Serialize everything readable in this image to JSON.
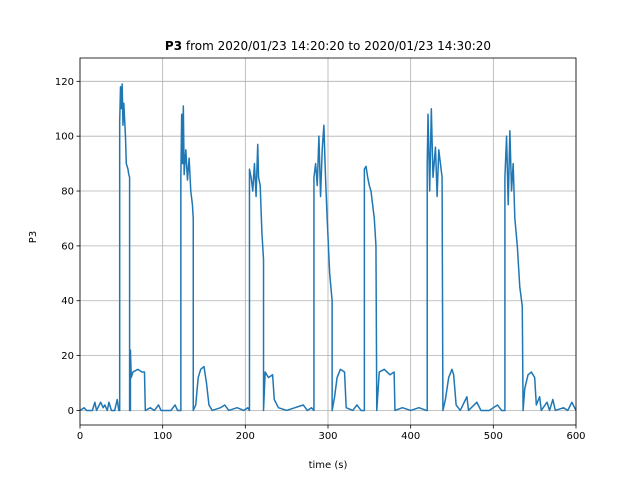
{
  "chart_data": {
    "type": "line",
    "title_bold": "P3",
    "title": "from 2020/01/23 14:20:20 to 2020/01/23 14:30:20",
    "xlabel": "time (s)",
    "ylabel": "P3",
    "xlim": [
      0,
      600
    ],
    "ylim": [
      -5.3,
      128.5
    ],
    "xticks": [
      0,
      100,
      200,
      300,
      400,
      500,
      600
    ],
    "yticks": [
      0,
      20,
      40,
      60,
      80,
      100,
      120
    ],
    "grid": true,
    "x": [
      0,
      5,
      8,
      15,
      18,
      20,
      25,
      28,
      30,
      33,
      35,
      38,
      42,
      45,
      47,
      48,
      48,
      49,
      50,
      51,
      52,
      53,
      55,
      56,
      58,
      59,
      60,
      60,
      61,
      61,
      62,
      64,
      70,
      75,
      78,
      79,
      85,
      90,
      95,
      98,
      110,
      115,
      118,
      122,
      122,
      123,
      124,
      125,
      126,
      128,
      130,
      132,
      134,
      136,
      137,
      137,
      140,
      143,
      146,
      150,
      153,
      156,
      160,
      170,
      175,
      180,
      190,
      198,
      203,
      205,
      205,
      207,
      209,
      211,
      213,
      215,
      216,
      218,
      220,
      222,
      222,
      224,
      228,
      233,
      235,
      240,
      250,
      260,
      270,
      275,
      280,
      283,
      283,
      285,
      287,
      289,
      291,
      293,
      295,
      297,
      299,
      302,
      305,
      305,
      308,
      311,
      315,
      320,
      322,
      330,
      335,
      340,
      344,
      344,
      346,
      348,
      350,
      352,
      354,
      356,
      358,
      359,
      362,
      368,
      375,
      380,
      381,
      390,
      400,
      410,
      419,
      420,
      420,
      421,
      423,
      425,
      427,
      430,
      432,
      434,
      436,
      438,
      439,
      442,
      446,
      450,
      452,
      455,
      460,
      468,
      470,
      480,
      485,
      495,
      505,
      510,
      514,
      514,
      516,
      518,
      520,
      522,
      524,
      526,
      529,
      532,
      535,
      536,
      538,
      542,
      546,
      550,
      552,
      556,
      558,
      565,
      568,
      572,
      575,
      585,
      590,
      595,
      600
    ],
    "series": [
      {
        "name": "P3",
        "color": "#1f77b4",
        "values": [
          0,
          1,
          0,
          0,
          3,
          0,
          3,
          1,
          2,
          0,
          3,
          0,
          0,
          4,
          0,
          0,
          105,
          118,
          110,
          119,
          104,
          112,
          100,
          90,
          88,
          86,
          85,
          0,
          0,
          22,
          12,
          14,
          15,
          14,
          14,
          0,
          1,
          0,
          2,
          0,
          0,
          2,
          0,
          0,
          85,
          108,
          90,
          111,
          86,
          95,
          84,
          92,
          80,
          75,
          70,
          0,
          2,
          12,
          15,
          16,
          10,
          2,
          0,
          1,
          2,
          0,
          1,
          0,
          1,
          0,
          88,
          85,
          80,
          90,
          78,
          97,
          85,
          82,
          65,
          55,
          0,
          14,
          12,
          13,
          4,
          1,
          0,
          1,
          2,
          0,
          1,
          0,
          85,
          90,
          82,
          100,
          78,
          95,
          104,
          85,
          70,
          50,
          40,
          0,
          5,
          12,
          15,
          14,
          1,
          0,
          2,
          0,
          0,
          88,
          89,
          85,
          82,
          80,
          75,
          70,
          60,
          0,
          14,
          15,
          13,
          14,
          0,
          1,
          0,
          1,
          0,
          0,
          90,
          108,
          80,
          110,
          85,
          96,
          78,
          95,
          90,
          85,
          0,
          4,
          12,
          15,
          13,
          2,
          0,
          5,
          0,
          3,
          0,
          0,
          2,
          0,
          0,
          85,
          100,
          75,
          102,
          80,
          90,
          70,
          60,
          45,
          38,
          0,
          8,
          13,
          14,
          12,
          2,
          5,
          0,
          3,
          0,
          4,
          0,
          1,
          0,
          3,
          0
        ]
      }
    ]
  }
}
